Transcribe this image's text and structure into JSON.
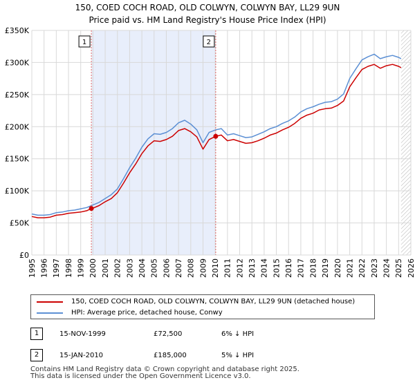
{
  "chart_data": {
    "type": "line",
    "title_line1": "150, COED COCH ROAD, OLD COLWYN, COLWYN BAY, LL29 9UN",
    "title_line2": "Price paid vs. HM Land Registry's House Price Index (HPI)",
    "xlim": [
      1995,
      2026
    ],
    "ylim": [
      0,
      350000
    ],
    "x_ticks": [
      "1995",
      "1996",
      "1997",
      "1998",
      "1999",
      "2000",
      "2001",
      "2002",
      "2003",
      "2004",
      "2005",
      "2006",
      "2007",
      "2008",
      "2009",
      "2010",
      "2011",
      "2012",
      "2013",
      "2014",
      "2015",
      "2016",
      "2017",
      "2018",
      "2019",
      "2020",
      "2021",
      "2022",
      "2023",
      "2024",
      "2025",
      "2026"
    ],
    "y_ticks": [
      {
        "value": 0,
        "label": "£0"
      },
      {
        "value": 50000,
        "label": "£50K"
      },
      {
        "value": 100000,
        "label": "£100K"
      },
      {
        "value": 150000,
        "label": "£150K"
      },
      {
        "value": 200000,
        "label": "£200K"
      },
      {
        "value": 250000,
        "label": "£250K"
      },
      {
        "value": 300000,
        "label": "£300K"
      },
      {
        "value": 350000,
        "label": "£350K"
      }
    ],
    "grid": true,
    "shaded_span": [
      1999.87,
      2010.04
    ],
    "forecast_from": 2025.2,
    "series": [
      {
        "name": "150, COED COCH ROAD, OLD COLWYN, COLWYN BAY, LL29 9UN (detached house)",
        "color": "#cc0000",
        "x": [
          1995,
          1995.5,
          1996,
          1996.5,
          1997,
          1997.5,
          1998,
          1998.5,
          1999,
          1999.5,
          1999.87,
          2000,
          2000.5,
          2001,
          2001.5,
          2002,
          2002.5,
          2003,
          2003.5,
          2004,
          2004.5,
          2005,
          2005.5,
          2006,
          2006.5,
          2007,
          2007.5,
          2008,
          2008.5,
          2009,
          2009.5,
          2010.04,
          2010.5,
          2011,
          2011.5,
          2012,
          2012.5,
          2013,
          2013.5,
          2014,
          2014.5,
          2015,
          2015.5,
          2016,
          2016.5,
          2017,
          2017.5,
          2018,
          2018.5,
          2019,
          2019.5,
          2020,
          2020.5,
          2021,
          2021.5,
          2022,
          2022.5,
          2023,
          2023.5,
          2024,
          2024.5,
          2025,
          2025.2
        ],
        "values": [
          60000,
          58000,
          58000,
          59000,
          62000,
          63000,
          65000,
          66000,
          67000,
          69000,
          72500,
          73000,
          77000,
          83000,
          88000,
          97000,
          112000,
          128000,
          142000,
          158000,
          170000,
          178000,
          177000,
          180000,
          185000,
          194000,
          197000,
          192000,
          184000,
          165000,
          180000,
          185000,
          187000,
          178000,
          180000,
          177000,
          174000,
          175000,
          178000,
          182000,
          187000,
          190000,
          195000,
          199000,
          205000,
          213000,
          218000,
          221000,
          226000,
          228000,
          229000,
          233000,
          240000,
          262000,
          276000,
          289000,
          294000,
          297000,
          291000,
          295000,
          297000,
          294000,
          292000
        ]
      },
      {
        "name": "HPI: Average price, detached house, Conwy",
        "color": "#5b8fd4",
        "x": [
          1995,
          1995.5,
          1996,
          1996.5,
          1997,
          1997.5,
          1998,
          1998.5,
          1999,
          1999.5,
          1999.87,
          2000,
          2000.5,
          2001,
          2001.5,
          2002,
          2002.5,
          2003,
          2003.5,
          2004,
          2004.5,
          2005,
          2005.5,
          2006,
          2006.5,
          2007,
          2007.5,
          2008,
          2008.5,
          2009,
          2009.5,
          2010.04,
          2010.5,
          2011,
          2011.5,
          2012,
          2012.5,
          2013,
          2013.5,
          2014,
          2014.5,
          2015,
          2015.5,
          2016,
          2016.5,
          2017,
          2017.5,
          2018,
          2018.5,
          2019,
          2019.5,
          2020,
          2020.5,
          2021,
          2021.5,
          2022,
          2022.5,
          2023,
          2023.5,
          2024,
          2024.5,
          2025,
          2025.2
        ],
        "values": [
          64000,
          62000,
          62000,
          63000,
          66000,
          67000,
          69000,
          70000,
          72000,
          74000,
          77000,
          78000,
          82000,
          88000,
          94000,
          103000,
          119000,
          136000,
          151000,
          168000,
          181000,
          189000,
          188000,
          191000,
          197000,
          206000,
          210000,
          204000,
          195000,
          175000,
          191000,
          195000,
          197000,
          187000,
          189000,
          186000,
          183000,
          184000,
          188000,
          192000,
          197000,
          200000,
          205000,
          209000,
          215000,
          223000,
          228000,
          231000,
          235000,
          238000,
          239000,
          243000,
          251000,
          275000,
          290000,
          304000,
          309000,
          313000,
          306000,
          309000,
          311000,
          308000,
          306000
        ]
      }
    ],
    "sales": [
      {
        "label": "1",
        "x": 1999.87,
        "price": 72500
      },
      {
        "label": "2",
        "x": 2010.04,
        "price": 185000
      }
    ]
  },
  "legend": {
    "property": "150, COED COCH ROAD, OLD COLWYN, COLWYN BAY, LL29 9UN (detached house)",
    "hpi": "HPI: Average price, detached house, Conwy"
  },
  "sales_table": [
    {
      "num": "1",
      "date": "15-NOV-1999",
      "price": "£72,500",
      "hpi": "6% ↓ HPI"
    },
    {
      "num": "2",
      "date": "15-JAN-2010",
      "price": "£185,000",
      "hpi": "5% ↓ HPI"
    }
  ],
  "footer": {
    "line1": "Contains HM Land Registry data © Crown copyright and database right 2025.",
    "line2": "This data is licensed under the Open Government Licence v3.0."
  },
  "colors": {
    "property": "#cc0000",
    "hpi": "#5b8fd4",
    "shade": "#e8eefb",
    "grid": "#d8d8d8",
    "marker_line": "#e06666"
  }
}
